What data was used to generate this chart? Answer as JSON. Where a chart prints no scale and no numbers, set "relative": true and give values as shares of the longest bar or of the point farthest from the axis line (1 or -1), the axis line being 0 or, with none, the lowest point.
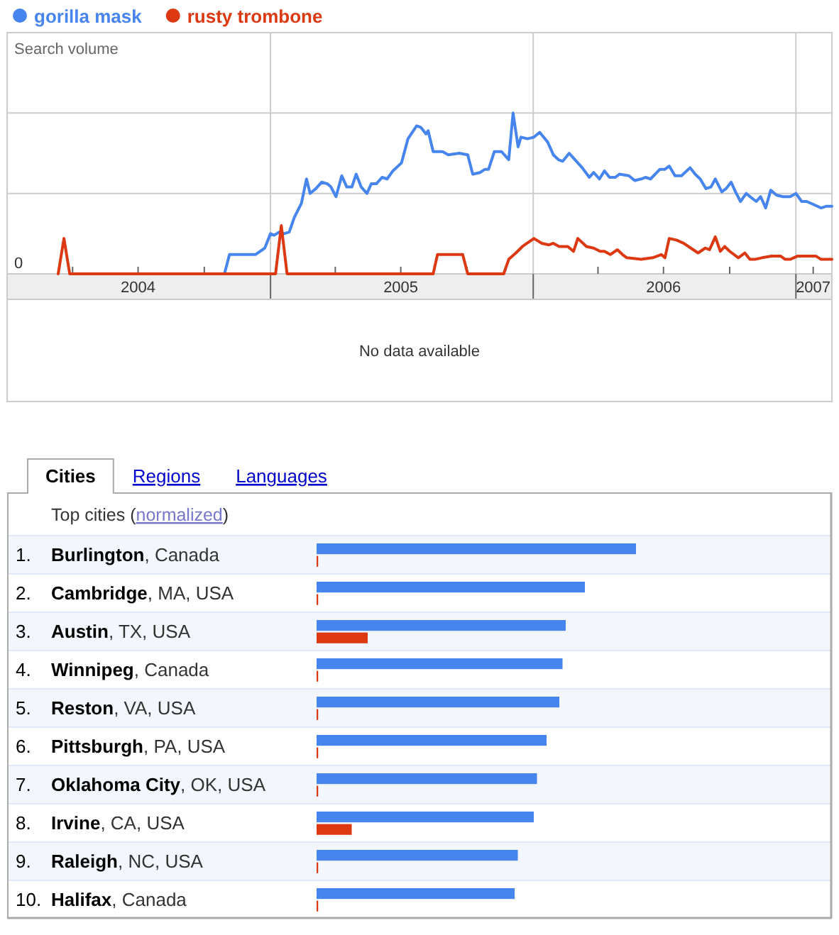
{
  "chart_data": [
    {
      "type": "line",
      "ylabel": "Search volume",
      "legend": "top left",
      "relative": true,
      "grid": true,
      "xlim": [
        "2004-01-01",
        "2007-02-20"
      ],
      "xticks": [
        {
          "value": "2004-04-01",
          "label": null
        },
        {
          "value": "2004-07-01",
          "label": "2004"
        },
        {
          "value": "2004-10-01",
          "label": null
        },
        {
          "value": "2005-01-01",
          "label": null
        },
        {
          "value": "2005-04-01",
          "label": null
        },
        {
          "value": "2005-07-01",
          "label": "2005"
        },
        {
          "value": "2005-10-01",
          "label": null
        },
        {
          "value": "2006-01-01",
          "label": null
        },
        {
          "value": "2006-04-01",
          "label": null
        },
        {
          "value": "2006-07-01",
          "label": "2006"
        },
        {
          "value": "2006-10-01",
          "label": null
        },
        {
          "value": "2007-01-01",
          "label": null
        },
        {
          "value": "2007-01-25",
          "label": "2007"
        }
      ],
      "annotations": [
        "0",
        "No data available"
      ],
      "series": [
        {
          "name": "gorilla mask",
          "color": "#4684ee",
          "x": [
            "2004-10-29",
            "2004-11-05",
            "2004-12-11",
            "2004-12-24",
            "2005-01-01",
            "2005-01-06",
            "2005-01-13",
            "2005-01-20",
            "2005-01-27",
            "2005-02-03",
            "2005-02-13",
            "2005-02-20",
            "2005-02-25",
            "2005-03-05",
            "2005-03-13",
            "2005-03-21",
            "2005-03-26",
            "2005-04-02",
            "2005-04-10",
            "2005-04-17",
            "2005-04-24",
            "2005-04-30",
            "2005-05-07",
            "2005-05-15",
            "2005-05-21",
            "2005-05-28",
            "2005-06-05",
            "2005-06-12",
            "2005-06-20",
            "2005-07-02",
            "2005-07-11",
            "2005-07-23",
            "2005-07-29",
            "2005-08-05",
            "2005-08-08",
            "2005-08-15",
            "2005-08-28",
            "2005-09-05",
            "2005-09-20",
            "2005-10-02",
            "2005-10-09",
            "2005-10-19",
            "2005-10-26",
            "2005-10-31",
            "2005-11-08",
            "2005-11-18",
            "2005-11-28",
            "2005-12-04",
            "2005-12-11",
            "2005-12-15",
            "2005-12-24",
            "2006-01-02",
            "2006-01-10",
            "2006-01-21",
            "2006-01-29",
            "2006-02-05",
            "2006-02-11",
            "2006-02-20",
            "2006-02-28",
            "2006-03-10",
            "2006-03-20",
            "2006-03-26",
            "2006-04-03",
            "2006-04-10",
            "2006-04-17",
            "2006-04-25",
            "2006-05-01",
            "2006-05-14",
            "2006-05-22",
            "2006-05-31",
            "2006-06-06",
            "2006-06-13",
            "2006-06-26",
            "2006-07-03",
            "2006-07-09",
            "2006-07-17",
            "2006-07-26",
            "2006-08-07",
            "2006-08-14",
            "2006-08-21",
            "2006-08-29",
            "2006-09-05",
            "2006-09-11",
            "2006-09-20",
            "2006-09-26",
            "2006-10-03",
            "2006-10-09",
            "2006-10-16",
            "2006-10-24",
            "2006-11-01",
            "2006-11-07",
            "2006-11-13",
            "2006-11-20",
            "2006-11-27",
            "2006-12-05",
            "2006-12-14",
            "2006-12-24",
            "2007-01-01",
            "2007-01-09",
            "2007-01-16",
            "2007-01-26",
            "2007-02-05",
            "2007-02-12",
            "2007-02-20"
          ],
          "values": [
            0,
            0.12,
            0.12,
            0.16,
            0.25,
            0.24,
            0.26,
            0.25,
            0.26,
            0.35,
            0.44,
            0.59,
            0.5,
            0.53,
            0.57,
            0.56,
            0.54,
            0.48,
            0.61,
            0.54,
            0.54,
            0.62,
            0.54,
            0.5,
            0.56,
            0.56,
            0.6,
            0.59,
            0.64,
            0.69,
            0.84,
            0.92,
            0.91,
            0.87,
            0.89,
            0.76,
            0.76,
            0.74,
            0.75,
            0.74,
            0.62,
            0.63,
            0.65,
            0.65,
            0.76,
            0.76,
            0.71,
            1,
            0.79,
            0.85,
            0.84,
            0.85,
            0.88,
            0.82,
            0.74,
            0.71,
            0.7,
            0.75,
            0.71,
            0.66,
            0.6,
            0.63,
            0.59,
            0.64,
            0.6,
            0.6,
            0.62,
            0.61,
            0.58,
            0.59,
            0.6,
            0.59,
            0.65,
            0.65,
            0.67,
            0.61,
            0.61,
            0.66,
            0.62,
            0.59,
            0.53,
            0.54,
            0.59,
            0.51,
            0.53,
            0.57,
            0.51,
            0.45,
            0.5,
            0.47,
            0.45,
            0.48,
            0.41,
            0.52,
            0.49,
            0.48,
            0.48,
            0.5,
            0.45,
            0.45,
            0.43,
            0.41,
            0.42,
            0.42
          ]
        },
        {
          "name": "rusty trombone",
          "color": "#dc3912",
          "x": [
            "2004-03-12",
            "2004-03-20",
            "2004-03-28",
            "2005-01-08",
            "2005-01-16",
            "2005-01-24",
            "2005-08-15",
            "2005-08-21",
            "2005-09-25",
            "2005-10-02",
            "2005-11-21",
            "2005-11-28",
            "2005-12-08",
            "2005-12-17",
            "2006-01-02",
            "2006-01-13",
            "2006-01-23",
            "2006-01-29",
            "2006-02-06",
            "2006-02-18",
            "2006-02-26",
            "2006-03-04",
            "2006-03-16",
            "2006-03-26",
            "2006-04-04",
            "2006-04-10",
            "2006-04-18",
            "2006-04-28",
            "2006-05-05",
            "2006-05-11",
            "2006-05-31",
            "2006-06-16",
            "2006-06-28",
            "2006-07-03",
            "2006-07-09",
            "2006-07-19",
            "2006-07-29",
            "2006-08-08",
            "2006-08-18",
            "2006-08-28",
            "2006-09-03",
            "2006-09-11",
            "2006-09-18",
            "2006-09-24",
            "2006-10-01",
            "2006-10-13",
            "2006-10-22",
            "2006-10-29",
            "2006-11-05",
            "2006-11-15",
            "2006-11-28",
            "2006-12-11",
            "2006-12-17",
            "2006-12-24",
            "2007-01-03",
            "2007-01-16",
            "2007-01-29",
            "2007-02-05",
            "2007-02-20"
          ],
          "values": [
            0,
            0.22,
            0,
            0,
            0.3,
            0,
            0,
            0.12,
            0.12,
            0,
            0,
            0.09,
            0.13,
            0.17,
            0.22,
            0.19,
            0.18,
            0.19,
            0.17,
            0.17,
            0.14,
            0.22,
            0.17,
            0.16,
            0.14,
            0.14,
            0.12,
            0.15,
            0.12,
            0.1,
            0.09,
            0.1,
            0.12,
            0.1,
            0.22,
            0.21,
            0.19,
            0.16,
            0.13,
            0.16,
            0.15,
            0.23,
            0.14,
            0.17,
            0.14,
            0.1,
            0.13,
            0.09,
            0.09,
            0.1,
            0.11,
            0.11,
            0.09,
            0.09,
            0.11,
            0.11,
            0.11,
            0.09,
            0.09
          ]
        }
      ]
    },
    {
      "type": "bar",
      "orientation": "horizontal",
      "relative": true,
      "title": "Cities",
      "subtitle": "Top cities (normalized)",
      "annotations": [
        "Regions",
        "Languages"
      ],
      "categories": [
        "1. Burlington, Canada",
        "2. Cambridge, MA, USA",
        "3. Austin, TX, USA",
        "4. Winnipeg, Canada",
        "5. Reston, VA, USA",
        "6. Pittsburgh, PA, USA",
        "7. Oklahoma City, OK, USA",
        "8. Irvine, CA, USA",
        "9. Raleigh, NC, USA",
        "10. Halifax, Canada"
      ],
      "series": [
        {
          "color": "#4684ee",
          "values": [
            1,
            0.84,
            0.78,
            0.77,
            0.76,
            0.72,
            0.69,
            0.68,
            0.63,
            0.62
          ]
        },
        {
          "color": "#dc3912",
          "values": [
            0.005,
            0.005,
            0.16,
            0.005,
            0.005,
            0.005,
            0.005,
            0.11,
            0.005,
            0.005
          ]
        }
      ]
    }
  ]
}
